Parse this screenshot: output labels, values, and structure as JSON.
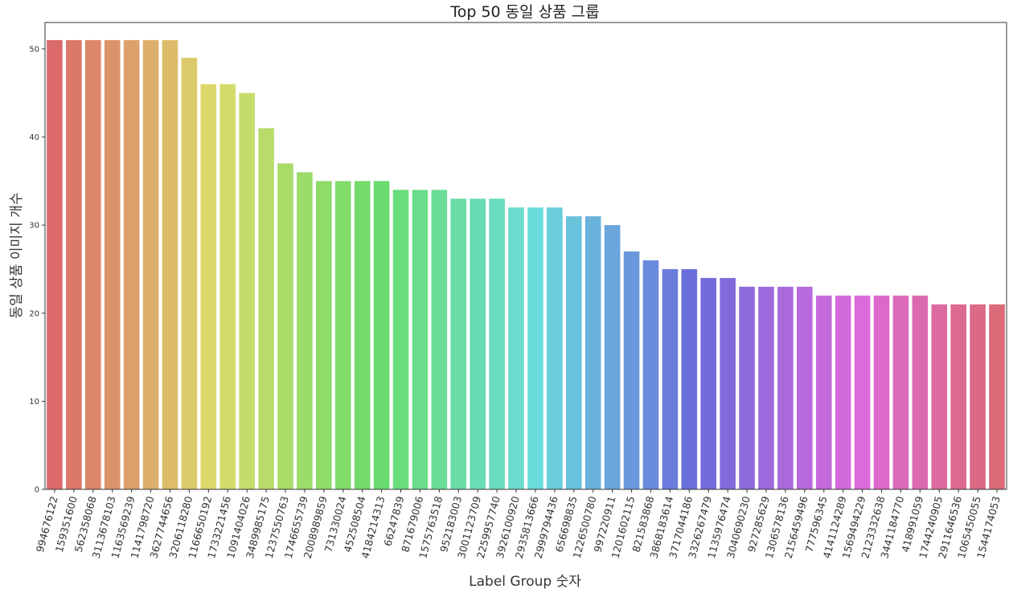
{
  "chart_data": {
    "type": "bar",
    "title": "Top 50 동일 상품 그룹",
    "xlabel": "Label Group 숫자",
    "ylabel": "동일 상품 이미지 개수",
    "ylim": [
      0,
      53
    ],
    "yticks": [
      0,
      10,
      20,
      30,
      40,
      50
    ],
    "grid": false,
    "categories": [
      "994676122",
      "159351600",
      "562358068",
      "3113678103",
      "1163569239",
      "1141798720",
      "3627744656",
      "3206118280",
      "1166650192",
      "1733221456",
      "1091404026",
      "3489985175",
      "1237550763",
      "1746655739",
      "2008989859",
      "731330024",
      "452508504",
      "4184214313",
      "66247839",
      "871679006",
      "1575763518",
      "952183003",
      "3001123709",
      "2259957740",
      "3926100920",
      "2935813666",
      "2999794436",
      "656698835",
      "1226500780",
      "997220911",
      "1201602115",
      "821583868",
      "3868183614",
      "3717044186",
      "3326267479",
      "1135976474",
      "3040690230",
      "927285629",
      "1306578136",
      "2156459496",
      "777596345",
      "4141124289",
      "1569494229",
      "2123332638",
      "3441184770",
      "418991059",
      "1744240905",
      "2911646536",
      "1065450055",
      "1544174053"
    ],
    "values": [
      51,
      51,
      51,
      51,
      51,
      51,
      51,
      49,
      46,
      46,
      45,
      41,
      37,
      36,
      35,
      35,
      35,
      35,
      34,
      34,
      34,
      33,
      33,
      33,
      32,
      32,
      32,
      31,
      31,
      30,
      27,
      26,
      25,
      25,
      24,
      24,
      23,
      23,
      23,
      23,
      22,
      22,
      22,
      22,
      22,
      22,
      21,
      21,
      21,
      21
    ]
  }
}
